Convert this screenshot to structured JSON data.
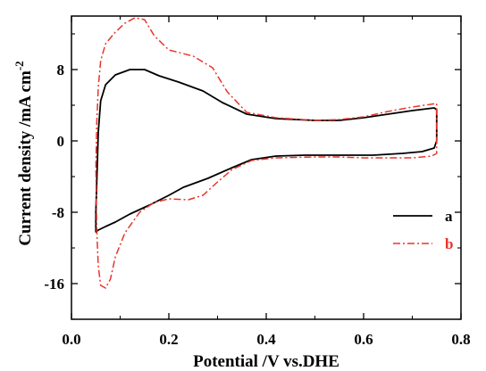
{
  "chart_data": {
    "type": "line",
    "xlabel": "Potential /V vs.DHE",
    "ylabel": "Current density /mA cm",
    "ylabel_superscript": "-2",
    "xlim": [
      0.0,
      0.8
    ],
    "ylim": [
      -20,
      14
    ],
    "xticks": [
      "0.0",
      "0.2",
      "0.4",
      "0.6",
      "0.8"
    ],
    "yticks": [
      "-16",
      "-8",
      "0",
      "8"
    ],
    "grid": false,
    "legend_position": "bottom-right",
    "series": [
      {
        "name": "a",
        "color": "#000000",
        "line_style": "solid",
        "x": [
          0.05,
          0.055,
          0.06,
          0.07,
          0.09,
          0.12,
          0.15,
          0.18,
          0.22,
          0.27,
          0.31,
          0.36,
          0.42,
          0.5,
          0.55,
          0.6,
          0.65,
          0.7,
          0.745,
          0.75,
          0.75,
          0.745,
          0.72,
          0.68,
          0.62,
          0.55,
          0.48,
          0.42,
          0.37,
          0.33,
          0.28,
          0.23,
          0.2,
          0.16,
          0.12,
          0.09,
          0.07,
          0.055,
          0.05,
          0.05
        ],
        "y": [
          -8.0,
          1.0,
          4.5,
          6.3,
          7.4,
          8.0,
          8.0,
          7.3,
          6.6,
          5.6,
          4.3,
          3.0,
          2.5,
          2.3,
          2.3,
          2.6,
          3.0,
          3.4,
          3.7,
          3.5,
          0.0,
          -0.8,
          -1.2,
          -1.4,
          -1.6,
          -1.6,
          -1.6,
          -1.7,
          -2.1,
          -3.0,
          -4.2,
          -5.2,
          -6.1,
          -7.2,
          -8.2,
          -9.1,
          -9.6,
          -10.0,
          -10.2,
          -8.0
        ]
      },
      {
        "name": "b",
        "color": "#e8342a",
        "line_style": "dash-dot",
        "x": [
          0.05,
          0.052,
          0.055,
          0.06,
          0.07,
          0.09,
          0.11,
          0.13,
          0.15,
          0.17,
          0.2,
          0.25,
          0.29,
          0.32,
          0.36,
          0.42,
          0.5,
          0.55,
          0.6,
          0.65,
          0.7,
          0.75,
          0.75,
          0.74,
          0.7,
          0.65,
          0.6,
          0.55,
          0.5,
          0.42,
          0.37,
          0.33,
          0.3,
          0.27,
          0.24,
          0.2,
          0.17,
          0.14,
          0.11,
          0.09,
          0.08,
          0.07,
          0.06,
          0.055,
          0.052,
          0.05
        ],
        "y": [
          -3.0,
          2.0,
          6.0,
          9.0,
          10.9,
          12.2,
          13.2,
          13.8,
          13.6,
          11.8,
          10.2,
          9.5,
          8.2,
          5.5,
          3.2,
          2.6,
          2.3,
          2.4,
          2.7,
          3.3,
          3.8,
          4.2,
          -1.4,
          -1.7,
          -1.9,
          -1.9,
          -1.9,
          -1.8,
          -1.8,
          -1.9,
          -2.2,
          -3.2,
          -4.6,
          -6.1,
          -6.6,
          -6.5,
          -6.9,
          -8.0,
          -10.3,
          -13.0,
          -15.5,
          -16.5,
          -16.2,
          -14.0,
          -10.0,
          -3.0
        ]
      }
    ]
  }
}
